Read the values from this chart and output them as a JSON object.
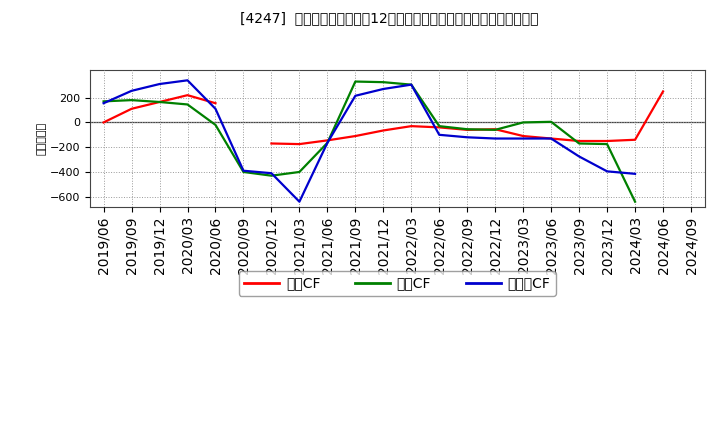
{
  "title": "[4247]  キャッシュフローの12か月移動合計の対前年同期増減額の推移",
  "ylabel": "（百万円）",
  "xlabels": [
    "2019/06",
    "2019/09",
    "2019/12",
    "2020/03",
    "2020/06",
    "2020/09",
    "2020/12",
    "2021/03",
    "2021/06",
    "2021/09",
    "2021/12",
    "2022/03",
    "2022/06",
    "2022/09",
    "2022/12",
    "2023/03",
    "2023/06",
    "2023/09",
    "2023/12",
    "2024/03",
    "2024/06",
    "2024/09"
  ],
  "eigyo_cf": [
    0,
    110,
    165,
    220,
    155,
    null,
    -170,
    -175,
    -145,
    -110,
    -65,
    -30,
    -40,
    -60,
    -55,
    -110,
    -130,
    -150,
    -150,
    -140,
    250,
    null
  ],
  "toshi_cf": [
    170,
    180,
    165,
    145,
    -20,
    -400,
    -430,
    -400,
    -165,
    330,
    325,
    305,
    -30,
    -55,
    -60,
    0,
    5,
    -170,
    -175,
    -640,
    null,
    null
  ],
  "free_cf": [
    155,
    255,
    310,
    340,
    110,
    -390,
    -410,
    -640,
    -165,
    215,
    270,
    305,
    -100,
    -120,
    -130,
    -130,
    -130,
    -275,
    -395,
    -415,
    null,
    null
  ],
  "series_labels": [
    "営業CF",
    "投資CF",
    "フリーCF"
  ],
  "line_colors": [
    "#ff0000",
    "#008000",
    "#0000cd"
  ],
  "ylim": [
    -680,
    420
  ],
  "yticks": [
    -600,
    -400,
    -200,
    0,
    200
  ],
  "bg_color": "#ffffff",
  "grid_color": "#999999",
  "line_width": 1.6
}
